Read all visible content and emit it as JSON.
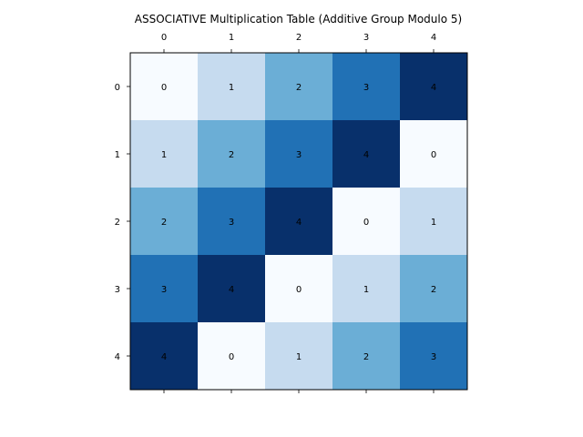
{
  "chart_data": {
    "type": "heatmap",
    "title": "ASSOCIATIVE Multiplication Table (Additive Group Modulo 5)",
    "x_categories": [
      "0",
      "1",
      "2",
      "3",
      "4"
    ],
    "y_categories": [
      "0",
      "1",
      "2",
      "3",
      "4"
    ],
    "x_axis_position": "top",
    "values": [
      [
        0,
        1,
        2,
        3,
        4
      ],
      [
        1,
        2,
        3,
        4,
        0
      ],
      [
        2,
        3,
        4,
        0,
        1
      ],
      [
        3,
        4,
        0,
        1,
        2
      ],
      [
        4,
        0,
        1,
        2,
        3
      ]
    ],
    "value_range": [
      0,
      4
    ],
    "colormap": [
      "#f7fbff",
      "#c6dbef",
      "#6baed6",
      "#2171b5",
      "#08306b"
    ],
    "grid": false,
    "cell_labels_shown": true
  }
}
